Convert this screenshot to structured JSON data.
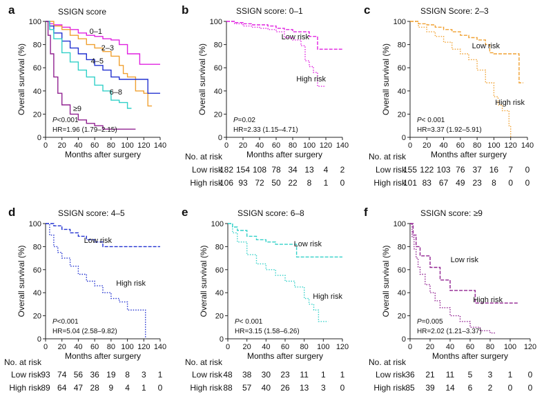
{
  "chart_data": [
    {
      "label": "a",
      "type": "line",
      "title": "SSIGN score",
      "xlabel": "Months after surgery",
      "ylabel": "Overall survival (%)",
      "xlim": [
        0,
        140
      ],
      "ylim": [
        0,
        100
      ],
      "xticks": [
        0,
        20,
        40,
        60,
        80,
        100,
        120,
        140
      ],
      "yticks": [
        0,
        20,
        40,
        60,
        80,
        100
      ],
      "pvalue": {
        "prefix": "P",
        "text": "<0.001"
      },
      "hr": "HR=1.96 (1.79–2.15)",
      "series": [
        {
          "name": "0–1",
          "color": "#e020e0",
          "dash": false,
          "x": [
            0,
            5,
            10,
            20,
            30,
            40,
            50,
            60,
            70,
            80,
            90,
            100,
            110,
            115,
            120,
            140
          ],
          "y": [
            100,
            98,
            97,
            95,
            93,
            90,
            88,
            87,
            85,
            84,
            80,
            72,
            72,
            63,
            63,
            63
          ]
        },
        {
          "name": "2–3",
          "color": "#f0a030",
          "dash": false,
          "x": [
            0,
            10,
            20,
            30,
            40,
            50,
            60,
            70,
            80,
            90,
            95,
            100,
            110,
            120,
            125,
            130
          ],
          "y": [
            100,
            96,
            93,
            88,
            85,
            80,
            77,
            74,
            70,
            62,
            55,
            52,
            40,
            38,
            27,
            27
          ]
        },
        {
          "name": "4–5",
          "color": "#2030d0",
          "dash": false,
          "x": [
            0,
            5,
            10,
            20,
            30,
            40,
            50,
            60,
            70,
            80,
            90,
            100,
            120,
            125,
            140
          ],
          "y": [
            100,
            96,
            90,
            83,
            77,
            72,
            67,
            62,
            58,
            52,
            50,
            50,
            50,
            38,
            38
          ]
        },
        {
          "name": "6–8",
          "color": "#30d0c8",
          "dash": false,
          "x": [
            0,
            5,
            10,
            20,
            30,
            40,
            50,
            60,
            70,
            80,
            90,
            100,
            105
          ],
          "y": [
            100,
            93,
            85,
            73,
            65,
            58,
            52,
            45,
            40,
            32,
            30,
            25,
            25
          ]
        },
        {
          "name": "≥9",
          "color": "#902090",
          "dash": false,
          "x": [
            0,
            3,
            6,
            10,
            15,
            20,
            30,
            40,
            50,
            60,
            70,
            80,
            90,
            100,
            110
          ],
          "y": [
            100,
            88,
            72,
            52,
            38,
            28,
            20,
            15,
            12,
            10,
            7,
            7,
            7,
            7,
            7
          ]
        }
      ],
      "risk_table": null
    },
    {
      "label": "b",
      "type": "line",
      "title": "SSIGN score: 0–1",
      "xlabel": "Months after surgery",
      "ylabel": "Overall survival (%)",
      "xlim": [
        0,
        140
      ],
      "ylim": [
        0,
        100
      ],
      "xticks": [
        0,
        20,
        40,
        60,
        80,
        100,
        120,
        140
      ],
      "yticks": [
        0,
        20,
        40,
        60,
        80,
        100
      ],
      "pvalue": {
        "prefix": "P",
        "text": "=0.02"
      },
      "hr": "HR=2.33 (1.15–4.71)",
      "series": [
        {
          "name": "Low risk",
          "color": "#e020e0",
          "dash": true,
          "x": [
            0,
            10,
            20,
            30,
            40,
            50,
            60,
            70,
            80,
            90,
            100,
            110,
            120,
            140
          ],
          "y": [
            100,
            99,
            98,
            97,
            97,
            96,
            94,
            93,
            91,
            91,
            87,
            76,
            76,
            76
          ]
        },
        {
          "name": "High risk",
          "color": "#e020e0",
          "dash": false,
          "x": [
            0,
            10,
            20,
            30,
            40,
            50,
            60,
            70,
            80,
            90,
            95,
            100,
            105,
            110,
            115,
            120
          ],
          "y": [
            100,
            98,
            96,
            95,
            94,
            93,
            91,
            86,
            84,
            79,
            66,
            61,
            56,
            44,
            44,
            44
          ]
        }
      ],
      "risk_table": {
        "header": "No. at risk",
        "rows": [
          {
            "label": "Low risk",
            "values": [
              "182",
              "154",
              "108",
              "78",
              "34",
              "13",
              "4",
              "2"
            ]
          },
          {
            "label": "High risk",
            "values": [
              "106",
              "93",
              "72",
              "50",
              "22",
              "8",
              "1",
              "0"
            ]
          }
        ]
      }
    },
    {
      "label": "c",
      "type": "line",
      "title": "SSIGN Score: 2–3",
      "xlabel": "Months after surgery",
      "ylabel": "Overall survival (%)",
      "xlim": [
        0,
        140
      ],
      "ylim": [
        0,
        100
      ],
      "xticks": [
        0,
        20,
        40,
        60,
        80,
        100,
        120,
        140
      ],
      "yticks": [
        0,
        20,
        40,
        60,
        80,
        100
      ],
      "pvalue": {
        "prefix": "P",
        "text": "< 0.001"
      },
      "hr": "HR=3.37 (1.92–5.91)",
      "series": [
        {
          "name": "Low risk",
          "color": "#f0a030",
          "dash": true,
          "x": [
            0,
            10,
            20,
            30,
            40,
            50,
            60,
            70,
            80,
            90,
            95,
            100,
            110,
            120,
            125,
            130,
            135
          ],
          "y": [
            100,
            98,
            97,
            95,
            93,
            91,
            88,
            86,
            84,
            80,
            73,
            72,
            72,
            72,
            72,
            47,
            47
          ]
        },
        {
          "name": "High risk",
          "color": "#f0a030",
          "dash": false,
          "x": [
            0,
            10,
            20,
            30,
            40,
            50,
            60,
            70,
            80,
            90,
            100,
            105,
            110,
            115,
            118,
            120
          ],
          "y": [
            100,
            95,
            91,
            87,
            82,
            76,
            72,
            67,
            58,
            47,
            35,
            28,
            23,
            23,
            10,
            0
          ]
        }
      ],
      "risk_table": {
        "header": "No. at risk",
        "rows": [
          {
            "label": "Low risk",
            "values": [
              "155",
              "122",
              "103",
              "76",
              "37",
              "16",
              "7",
              "0"
            ]
          },
          {
            "label": "High risk",
            "values": [
              "101",
              "83",
              "67",
              "49",
              "23",
              "8",
              "0",
              "0"
            ]
          }
        ]
      }
    },
    {
      "label": "d",
      "type": "line",
      "title": "SSIGN score: 4–5",
      "xlabel": "Months after surgery",
      "ylabel": "Overall survival (%)",
      "xlim": [
        0,
        140
      ],
      "ylim": [
        0,
        100
      ],
      "xticks": [
        0,
        20,
        40,
        60,
        80,
        100,
        120,
        140
      ],
      "yticks": [
        0,
        20,
        40,
        60,
        80,
        100
      ],
      "pvalue": {
        "prefix": "P",
        "text": "<0.001"
      },
      "hr": "HR=5.04 (2.58–9.82)",
      "series": [
        {
          "name": "Low risk",
          "color": "#2030d0",
          "dash": true,
          "x": [
            0,
            10,
            20,
            30,
            40,
            50,
            60,
            70,
            80,
            90,
            100,
            110,
            120,
            140
          ],
          "y": [
            100,
            98,
            95,
            92,
            89,
            86,
            84,
            80,
            80,
            80,
            80,
            80,
            80,
            80
          ]
        },
        {
          "name": "High risk",
          "color": "#2030d0",
          "dash": false,
          "x": [
            0,
            5,
            10,
            15,
            20,
            30,
            40,
            50,
            60,
            70,
            80,
            90,
            100,
            110,
            115,
            120,
            122
          ],
          "y": [
            100,
            90,
            80,
            75,
            70,
            63,
            56,
            50,
            46,
            40,
            35,
            32,
            25,
            25,
            25,
            25,
            0
          ]
        }
      ],
      "risk_table": {
        "header": "No. at risk",
        "rows": [
          {
            "label": "Low risk",
            "values": [
              "93",
              "74",
              "56",
              "36",
              "19",
              "8",
              "3",
              "1"
            ]
          },
          {
            "label": "High risk",
            "values": [
              "89",
              "64",
              "47",
              "28",
              "9",
              "4",
              "1",
              "0"
            ]
          }
        ]
      }
    },
    {
      "label": "e",
      "type": "line",
      "title": "SSIGN score: 6–8",
      "xlabel": "Months after surgery",
      "ylabel": "Overall survival (%)",
      "xlim": [
        0,
        120
      ],
      "ylim": [
        0,
        100
      ],
      "xticks": [
        0,
        20,
        40,
        60,
        80,
        100,
        120
      ],
      "yticks": [
        0,
        20,
        40,
        60,
        80,
        100
      ],
      "pvalue": {
        "prefix": "P",
        "text": "< 0.001"
      },
      "hr": "HR=3.15 (1.58–6.26)",
      "series": [
        {
          "name": "Low risk",
          "color": "#30d0c8",
          "dash": true,
          "x": [
            0,
            5,
            10,
            20,
            30,
            40,
            50,
            60,
            70,
            72,
            80,
            100,
            120
          ],
          "y": [
            100,
            97,
            94,
            89,
            86,
            84,
            82,
            82,
            82,
            71,
            71,
            71,
            71
          ]
        },
        {
          "name": "High risk",
          "color": "#30d0c8",
          "dash": false,
          "x": [
            0,
            5,
            10,
            20,
            30,
            40,
            50,
            60,
            70,
            80,
            85,
            90,
            95,
            100,
            105
          ],
          "y": [
            100,
            92,
            84,
            73,
            65,
            60,
            55,
            50,
            45,
            35,
            30,
            25,
            15,
            15,
            15
          ]
        }
      ],
      "risk_table": {
        "header": "No. at risk",
        "rows": [
          {
            "label": "Low risk",
            "values": [
              "48",
              "38",
              "30",
              "23",
              "11",
              "1",
              "1"
            ]
          },
          {
            "label": "High risk",
            "values": [
              "88",
              "57",
              "40",
              "26",
              "13",
              "3",
              "0"
            ]
          }
        ]
      }
    },
    {
      "label": "f",
      "type": "line",
      "title": "SSIGN score: ≥9",
      "xlabel": "Months after surgery",
      "ylabel": "Overall survival (%)",
      "xlim": [
        0,
        120
      ],
      "ylim": [
        0,
        100
      ],
      "xticks": [
        0,
        20,
        40,
        60,
        80,
        100,
        120
      ],
      "yticks": [
        0,
        20,
        40,
        60,
        80,
        100
      ],
      "pvalue": {
        "prefix": "P",
        "text": "=0.005"
      },
      "hr": "HR=2.02 (1.21–3.37)",
      "series": [
        {
          "name": "Low risk",
          "color": "#902090",
          "dash": true,
          "x": [
            0,
            3,
            6,
            10,
            20,
            30,
            40,
            50,
            60,
            65,
            80,
            100,
            108
          ],
          "y": [
            100,
            90,
            80,
            72,
            62,
            51,
            42,
            42,
            42,
            31,
            31,
            31,
            31
          ]
        },
        {
          "name": "High risk",
          "color": "#902090",
          "dash": false,
          "x": [
            0,
            2,
            4,
            6,
            8,
            10,
            15,
            20,
            25,
            30,
            40,
            50,
            60,
            70,
            80,
            85
          ],
          "y": [
            100,
            88,
            78,
            70,
            62,
            56,
            47,
            40,
            33,
            27,
            20,
            15,
            10,
            7,
            5,
            4
          ]
        }
      ],
      "risk_table": {
        "header": "No. at risk",
        "rows": [
          {
            "label": "Low risk",
            "values": [
              "36",
              "21",
              "11",
              "5",
              "3",
              "1",
              "0"
            ]
          },
          {
            "label": "High risk",
            "values": [
              "85",
              "39",
              "14",
              "6",
              "2",
              "0",
              "0"
            ]
          }
        ]
      }
    }
  ]
}
